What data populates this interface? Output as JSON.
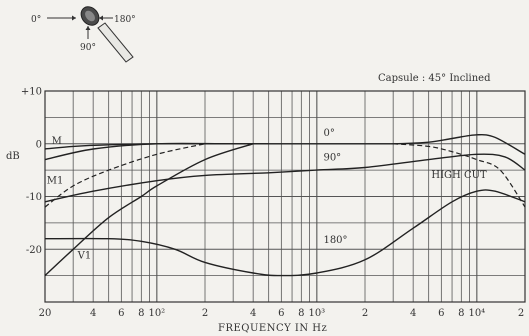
{
  "chart_data": {
    "type": "line",
    "annotation_top_right": "Capsule : 45° Inclined",
    "xlabel": "FREQUENCY IN Hz",
    "ylabel": "dB",
    "x_scale": "log",
    "xlim": [
      20,
      20000
    ],
    "ylim": [
      -30,
      10
    ],
    "grid": true,
    "x_tick_labels": [
      {
        "x": 20,
        "label": "20"
      },
      {
        "x": 40,
        "label": "4"
      },
      {
        "x": 60,
        "label": "6"
      },
      {
        "x": 80,
        "label": "8"
      },
      {
        "x": 100,
        "label": "10²"
      },
      {
        "x": 200,
        "label": "2"
      },
      {
        "x": 400,
        "label": "4"
      },
      {
        "x": 600,
        "label": "6"
      },
      {
        "x": 800,
        "label": "8"
      },
      {
        "x": 1000,
        "label": "10³"
      },
      {
        "x": 2000,
        "label": "2"
      },
      {
        "x": 4000,
        "label": "4"
      },
      {
        "x": 6000,
        "label": "6"
      },
      {
        "x": 8000,
        "label": "8"
      },
      {
        "x": 10000,
        "label": "10⁴"
      },
      {
        "x": 20000,
        "label": "2"
      }
    ],
    "y_tick_labels": [
      {
        "y": 10,
        "label": "+10"
      },
      {
        "y": 0,
        "label": "0"
      },
      {
        "y": -10,
        "label": "-10"
      },
      {
        "y": -20,
        "label": "-20"
      }
    ],
    "series": [
      {
        "name": "0°",
        "style": "solid",
        "x": [
          20,
          40,
          100,
          300,
          1000,
          3000,
          5000,
          7000,
          10000,
          13000,
          20000
        ],
        "y": [
          -3,
          -1,
          0,
          0,
          0,
          0,
          0.3,
          1,
          1.7,
          1.2,
          -2
        ]
      },
      {
        "name": "HIGH CUT",
        "style": "dashed",
        "x": [
          3000,
          5000,
          7000,
          10000,
          14000,
          20000
        ],
        "y": [
          0,
          -0.5,
          -1.5,
          -3,
          -5,
          -12
        ]
      },
      {
        "name": "M",
        "style": "solid",
        "x": [
          20,
          30,
          50,
          100,
          200,
          500
        ],
        "y": [
          -1,
          -0.5,
          -0.2,
          0,
          0,
          0
        ]
      },
      {
        "name": "M1",
        "style": "dashed",
        "x": [
          20,
          30,
          50,
          100,
          200
        ],
        "y": [
          -12,
          -8,
          -5,
          -2,
          0
        ]
      },
      {
        "name": "V1",
        "style": "solid",
        "x": [
          20,
          30,
          50,
          80,
          100,
          200,
          400
        ],
        "y": [
          -25,
          -20,
          -14,
          -10,
          -8,
          -3,
          0
        ]
      },
      {
        "name": "90°",
        "style": "solid",
        "x": [
          20,
          40,
          100,
          200,
          500,
          1000,
          2000,
          5000,
          10000,
          15000,
          20000
        ],
        "y": [
          -11,
          -9,
          -7,
          -6,
          -5.5,
          -5,
          -4.5,
          -3,
          -2,
          -2.5,
          -5
        ]
      },
      {
        "name": "180°",
        "style": "solid",
        "x": [
          20,
          50,
          80,
          130,
          200,
          400,
          600,
          1000,
          2000,
          4000,
          7000,
          10000,
          13000,
          20000
        ],
        "y": [
          -18,
          -18,
          -18.5,
          -20,
          -22.5,
          -24.5,
          -25,
          -24.5,
          -22,
          -16,
          -11,
          -9,
          -9,
          -11
        ]
      }
    ],
    "curve_labels": [
      {
        "text": "0°",
        "x": 1100,
        "y": 1.5
      },
      {
        "text": "90°",
        "x": 1100,
        "y": -3.2
      },
      {
        "text": "180°",
        "x": 1100,
        "y": -18.8
      },
      {
        "text": "HIGH CUT",
        "x": 5200,
        "y": -6.5
      },
      {
        "text": "M",
        "x": 22,
        "y": 0
      },
      {
        "text": "M1",
        "x": 20.5,
        "y": -7.5
      },
      {
        "text": "V1",
        "x": 32,
        "y": -21.8
      }
    ]
  },
  "inset": {
    "label_0": "0°",
    "label_180": "180°",
    "label_90": "90°"
  }
}
